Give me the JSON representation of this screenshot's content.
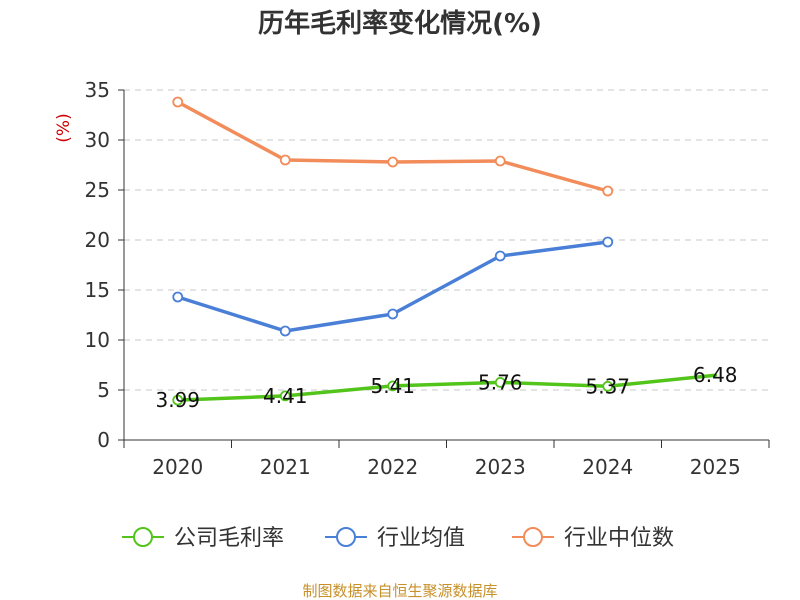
{
  "chart_data": {
    "type": "line",
    "title": "历年毛利率变化情况(%)",
    "ylabel": "(%)",
    "categories": [
      "2020",
      "2021",
      "2022",
      "2023",
      "2024",
      "2025"
    ],
    "ylim": [
      0,
      35
    ],
    "yticks": [
      "0",
      "5",
      "10",
      "15",
      "20",
      "25",
      "30",
      "35"
    ],
    "grid": true,
    "legend_position": "bottom",
    "series": [
      {
        "name": "公司毛利率",
        "color": "#52c41a",
        "values": [
          3.99,
          4.41,
          5.41,
          5.76,
          5.37,
          6.48
        ],
        "labels": [
          "3.99",
          "4.41",
          "5.41",
          "5.76",
          "5.37",
          "6.48"
        ],
        "show_labels": true,
        "markers": [
          true,
          true,
          true,
          true,
          true,
          false
        ]
      },
      {
        "name": "行业均值",
        "color": "#4a7fd8",
        "values": [
          14.3,
          10.9,
          12.6,
          18.4,
          19.8,
          null
        ],
        "show_labels": false,
        "markers": [
          true,
          true,
          true,
          true,
          true,
          false
        ]
      },
      {
        "name": "行业中位数",
        "color": "#f28c5a",
        "values": [
          33.8,
          28.0,
          27.8,
          27.9,
          24.9,
          null
        ],
        "show_labels": false,
        "markers": [
          true,
          true,
          true,
          true,
          true,
          false
        ]
      }
    ]
  },
  "source": {
    "text": "制图数据来自恒生聚源数据库",
    "color": "#c8902a"
  },
  "ylabel_color": "#cc0000"
}
